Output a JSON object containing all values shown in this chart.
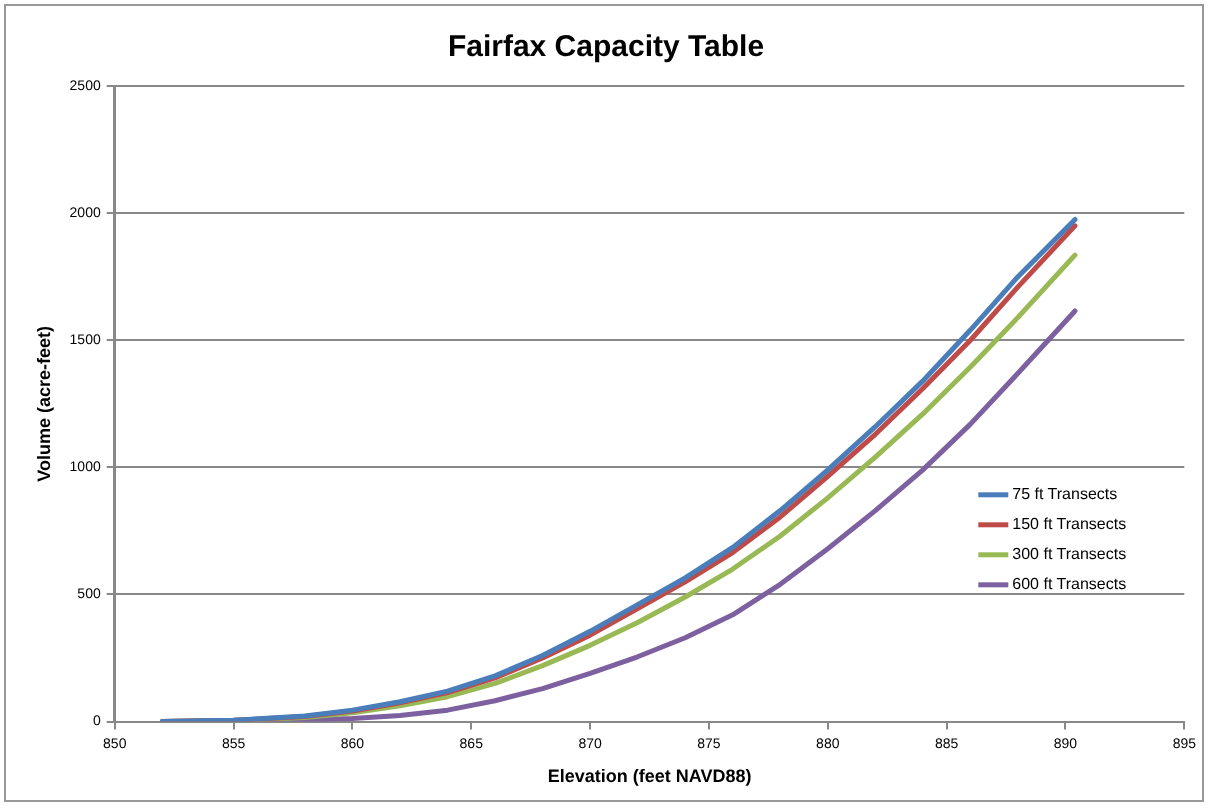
{
  "chart_data": {
    "type": "line",
    "title": "Fairfax Capacity Table",
    "xlabel": "Elevation (feet NAVD88)",
    "ylabel": "Volume (acre-feet)",
    "x": [
      852,
      855,
      858,
      860,
      862,
      864,
      866,
      868,
      870,
      872,
      874,
      876,
      878,
      880,
      882,
      884,
      886,
      888,
      890.4
    ],
    "series": [
      {
        "name": "75 ft Transects",
        "color": "#4a7ebb",
        "values": [
          0,
          5,
          22,
          45,
          78,
          120,
          180,
          260,
          355,
          460,
          565,
          685,
          830,
          990,
          1160,
          1340,
          1540,
          1750,
          1975
        ]
      },
      {
        "name": "150 ft Transects",
        "color": "#be4b48",
        "values": [
          0,
          5,
          20,
          42,
          74,
          114,
          172,
          250,
          340,
          445,
          550,
          665,
          805,
          965,
          1130,
          1310,
          1500,
          1710,
          1950
        ]
      },
      {
        "name": "300 ft Transects",
        "color": "#98b954",
        "values": [
          0,
          4,
          16,
          35,
          62,
          98,
          150,
          220,
          300,
          390,
          490,
          600,
          730,
          880,
          1040,
          1210,
          1395,
          1590,
          1835
        ]
      },
      {
        "name": "600 ft Transects",
        "color": "#7d60a0",
        "values": [
          0,
          2,
          6,
          12,
          24,
          45,
          82,
          130,
          190,
          255,
          330,
          420,
          540,
          680,
          830,
          990,
          1170,
          1370,
          1615
        ]
      }
    ],
    "xlim": [
      850,
      895
    ],
    "xticks": [
      850,
      855,
      860,
      865,
      870,
      875,
      880,
      885,
      890,
      895
    ],
    "ylim": [
      0,
      2500
    ],
    "yticks": [
      0,
      500,
      1000,
      1500,
      2000,
      2500
    ],
    "grid": "y",
    "legend": "right",
    "marker": "none",
    "line_style": "solid"
  }
}
